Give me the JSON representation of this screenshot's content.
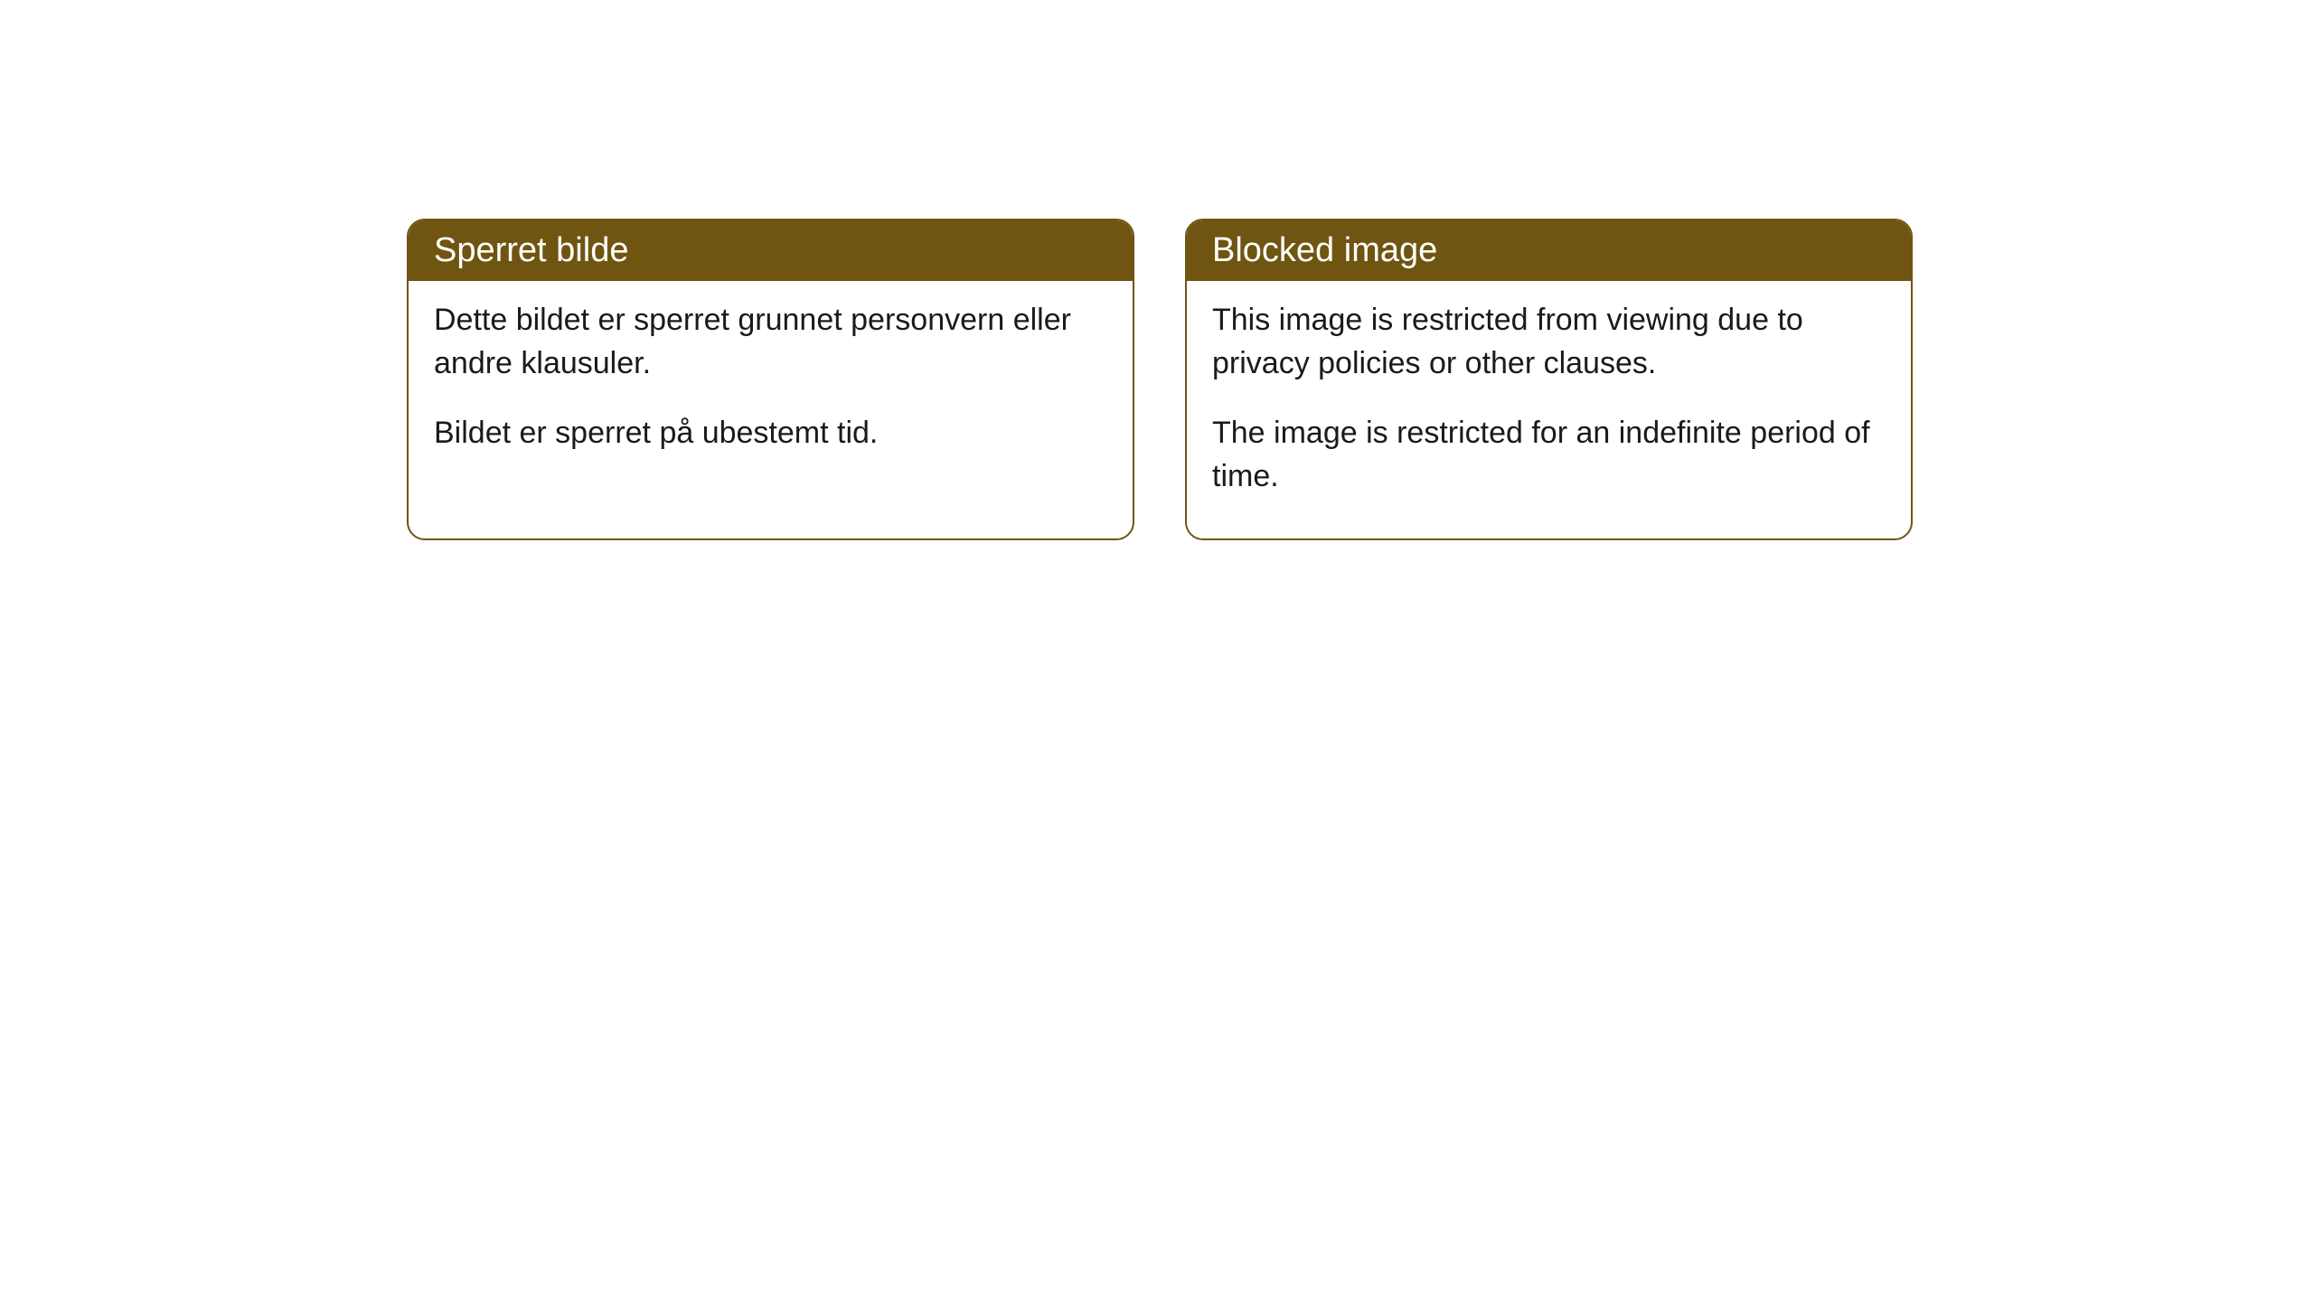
{
  "cards": [
    {
      "title": "Sperret bilde",
      "paragraph1": "Dette bildet er sperret grunnet personvern eller andre klausuler.",
      "paragraph2": "Bildet er sperret på ubestemt tid."
    },
    {
      "title": "Blocked image",
      "paragraph1": "This image is restricted from viewing due to privacy policies or other clauses.",
      "paragraph2": "The image is restricted for an indefinite period of time."
    }
  ],
  "styling": {
    "header_background": "#6f5511",
    "header_text_color": "#ffffff",
    "border_color": "#6f5511",
    "body_background": "#ffffff",
    "body_text_color": "#1a1a1a",
    "border_radius": "20px",
    "header_fontsize": 38,
    "body_fontsize": 34
  }
}
